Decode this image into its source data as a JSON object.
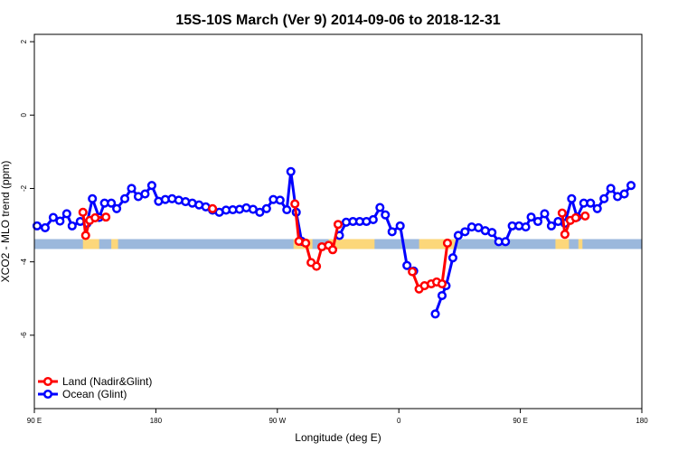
{
  "chart_data": {
    "type": "line",
    "title": "15S-10S March (Ver 9)   2014-09-06 to 2018-12-31",
    "xlabel": "Longitude (deg E)",
    "ylabel": "XCO2 - MLO trend (ppm)",
    "xlim": [
      90,
      540
    ],
    "ylim": [
      -8,
      2.2
    ],
    "x_ticks": [
      {
        "value": 90,
        "label": "90 E"
      },
      {
        "value": 180,
        "label": "180"
      },
      {
        "value": 270,
        "label": "90 W"
      },
      {
        "value": 360,
        "label": "0"
      },
      {
        "value": 450,
        "label": "90 E"
      },
      {
        "value": 540,
        "label": "180"
      }
    ],
    "y_ticks": [
      {
        "value": -6,
        "label": "-6"
      },
      {
        "value": -4,
        "label": "-4"
      },
      {
        "value": -2,
        "label": "-2"
      },
      {
        "value": 0,
        "label": "0"
      },
      {
        "value": 2,
        "label": "2"
      }
    ],
    "grid": false,
    "legend_position": "bottom-left",
    "colors": {
      "land": "#ff0000",
      "ocean": "#0000ff",
      "band_ocean": "#9bb8dc",
      "band_land": "#fcd77a"
    },
    "band": {
      "y_top": -3.38,
      "y_bottom": -3.65,
      "land_segments": [
        [
          126,
          138
        ],
        [
          147,
          152
        ],
        [
          282,
          296
        ],
        [
          308,
          342
        ],
        [
          375,
          403
        ],
        [
          476,
          486
        ],
        [
          493,
          496
        ]
      ]
    },
    "series": [
      {
        "name": "Land (Nadir&Glint)",
        "color": "#ff0000",
        "segments": [
          [
            [
              126,
              -2.65
            ],
            [
              128,
              -3.28
            ],
            [
              131,
              -2.87
            ],
            [
              135,
              -2.8
            ],
            [
              143,
              -2.78
            ]
          ],
          [
            [
              222,
              -2.55
            ]
          ],
          [
            [
              283,
              -2.42
            ],
            [
              286,
              -3.44
            ],
            [
              291,
              -3.49
            ],
            [
              295,
              -4.02
            ],
            [
              299,
              -4.12
            ],
            [
              303,
              -3.59
            ],
            [
              308,
              -3.55
            ],
            [
              311,
              -3.67
            ],
            [
              315,
              -2.98
            ]
          ],
          [
            [
              370,
              -4.27
            ],
            [
              375,
              -4.74
            ],
            [
              379,
              -4.65
            ],
            [
              384,
              -4.6
            ],
            [
              388,
              -4.55
            ],
            [
              392,
              -4.6
            ],
            [
              396,
              -3.49
            ]
          ],
          [
            [
              481,
              -2.67
            ],
            [
              483,
              -3.25
            ],
            [
              487,
              -2.87
            ],
            [
              491,
              -2.8
            ],
            [
              498,
              -2.75
            ]
          ]
        ]
      },
      {
        "name": "Ocean (Glint)",
        "color": "#0000ff",
        "segments": [
          [
            [
              92,
              -3.02
            ],
            [
              98,
              -3.07
            ],
            [
              104,
              -2.79
            ],
            [
              109,
              -2.89
            ],
            [
              114,
              -2.69
            ],
            [
              118,
              -3.02
            ],
            [
              124,
              -2.9
            ],
            [
              129,
              -2.95
            ],
            [
              133,
              -2.28
            ],
            [
              138,
              -2.79
            ],
            [
              142,
              -2.4
            ],
            [
              147,
              -2.4
            ],
            [
              151,
              -2.55
            ],
            [
              157,
              -2.28
            ],
            [
              162,
              -2.0
            ],
            [
              167,
              -2.22
            ],
            [
              172,
              -2.15
            ],
            [
              177,
              -1.92
            ],
            [
              182,
              -2.35
            ],
            [
              187,
              -2.3
            ],
            [
              192,
              -2.28
            ],
            [
              197,
              -2.32
            ],
            [
              202,
              -2.36
            ],
            [
              207,
              -2.4
            ],
            [
              212,
              -2.45
            ],
            [
              217,
              -2.5
            ],
            [
              222,
              -2.59
            ],
            [
              227,
              -2.65
            ],
            [
              232,
              -2.59
            ],
            [
              237,
              -2.58
            ],
            [
              242,
              -2.57
            ],
            [
              247,
              -2.53
            ],
            [
              252,
              -2.57
            ],
            [
              257,
              -2.65
            ],
            [
              262,
              -2.55
            ],
            [
              267,
              -2.3
            ],
            [
              272,
              -2.32
            ],
            [
              277,
              -2.58
            ],
            [
              280,
              -1.54
            ],
            [
              284,
              -2.65
            ],
            [
              288,
              -3.44
            ]
          ],
          [
            [
              316,
              -3.28
            ],
            [
              321,
              -2.92
            ],
            [
              326,
              -2.9
            ],
            [
              331,
              -2.9
            ],
            [
              336,
              -2.9
            ],
            [
              341,
              -2.85
            ],
            [
              346,
              -2.52
            ],
            [
              350,
              -2.72
            ],
            [
              355,
              -3.18
            ],
            [
              361,
              -3.02
            ],
            [
              366,
              -4.1
            ],
            [
              371,
              -4.25
            ]
          ],
          [
            [
              387,
              -5.42
            ],
            [
              392,
              -4.92
            ],
            [
              395,
              -4.65
            ],
            [
              400,
              -3.89
            ],
            [
              404,
              -3.28
            ],
            [
              409,
              -3.18
            ],
            [
              414,
              -3.05
            ],
            [
              419,
              -3.07
            ],
            [
              424,
              -3.15
            ],
            [
              429,
              -3.2
            ],
            [
              434,
              -3.45
            ],
            [
              439,
              -3.45
            ],
            [
              444,
              -3.02
            ],
            [
              449,
              -3.02
            ],
            [
              454,
              -3.05
            ],
            [
              458,
              -2.78
            ],
            [
              463,
              -2.9
            ],
            [
              468,
              -2.69
            ],
            [
              473,
              -3.02
            ],
            [
              478,
              -2.9
            ],
            [
              483,
              -2.95
            ],
            [
              488,
              -2.28
            ],
            [
              492,
              -2.78
            ],
            [
              497,
              -2.4
            ],
            [
              502,
              -2.4
            ],
            [
              507,
              -2.55
            ],
            [
              512,
              -2.28
            ],
            [
              517,
              -2.0
            ],
            [
              522,
              -2.22
            ],
            [
              527,
              -2.15
            ],
            [
              532,
              -1.92
            ]
          ]
        ]
      }
    ]
  }
}
